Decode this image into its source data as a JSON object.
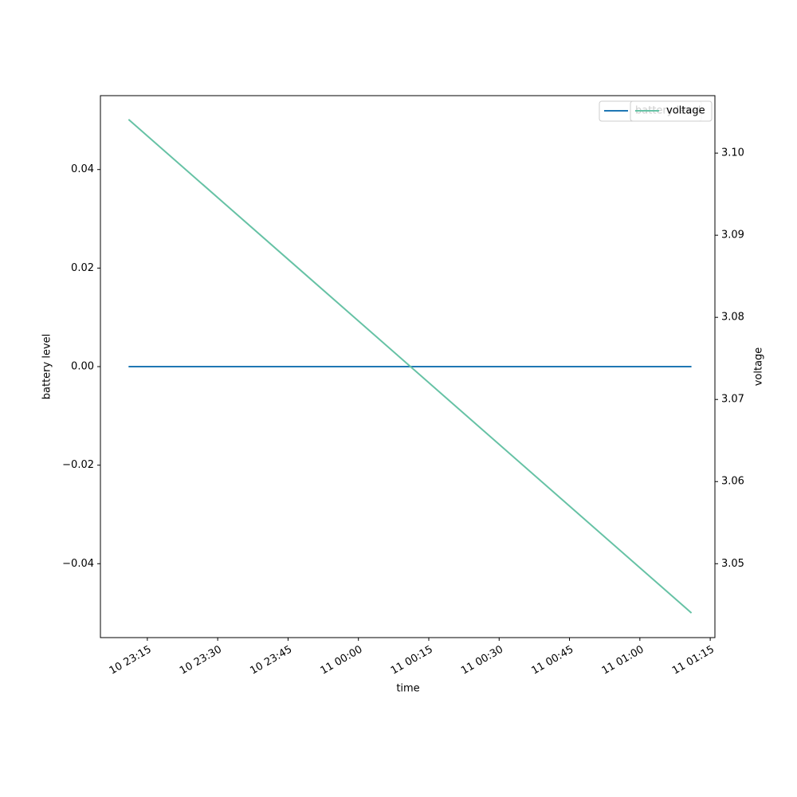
{
  "chart_data": {
    "type": "line",
    "x_label": "time",
    "y_label": "battery level",
    "y2_label": "voltage",
    "x": [
      "10 23:11",
      "11 01:11"
    ],
    "xlim": [
      "10 23:05",
      "11 01:16"
    ],
    "xticks": [
      "10 23:15",
      "10 23:30",
      "10 23:45",
      "11 00:00",
      "11 00:15",
      "11 00:30",
      "11 00:45",
      "11 01:00",
      "11 01:15"
    ],
    "ylim": [
      -0.055,
      0.055
    ],
    "yticks": [
      {
        "value": -0.04,
        "label": "−0.04"
      },
      {
        "value": -0.02,
        "label": "−0.02"
      },
      {
        "value": 0,
        "label": "0.00"
      },
      0.02,
      0.04
    ],
    "y2lim": [
      3.041,
      3.107
    ],
    "y2ticks": [
      3.05,
      3.06,
      3.07,
      3.08,
      3.09,
      {
        "value": 3.1,
        "label": "3.10"
      }
    ],
    "series": [
      {
        "name": "battery level",
        "color": "#1f77b4",
        "values": [
          0,
          0
        ]
      },
      {
        "name": "voltage",
        "color": "#66c2a5",
        "axis": "y2",
        "values": [
          3.1041,
          3.044
        ]
      }
    ],
    "legend": "upper right"
  }
}
